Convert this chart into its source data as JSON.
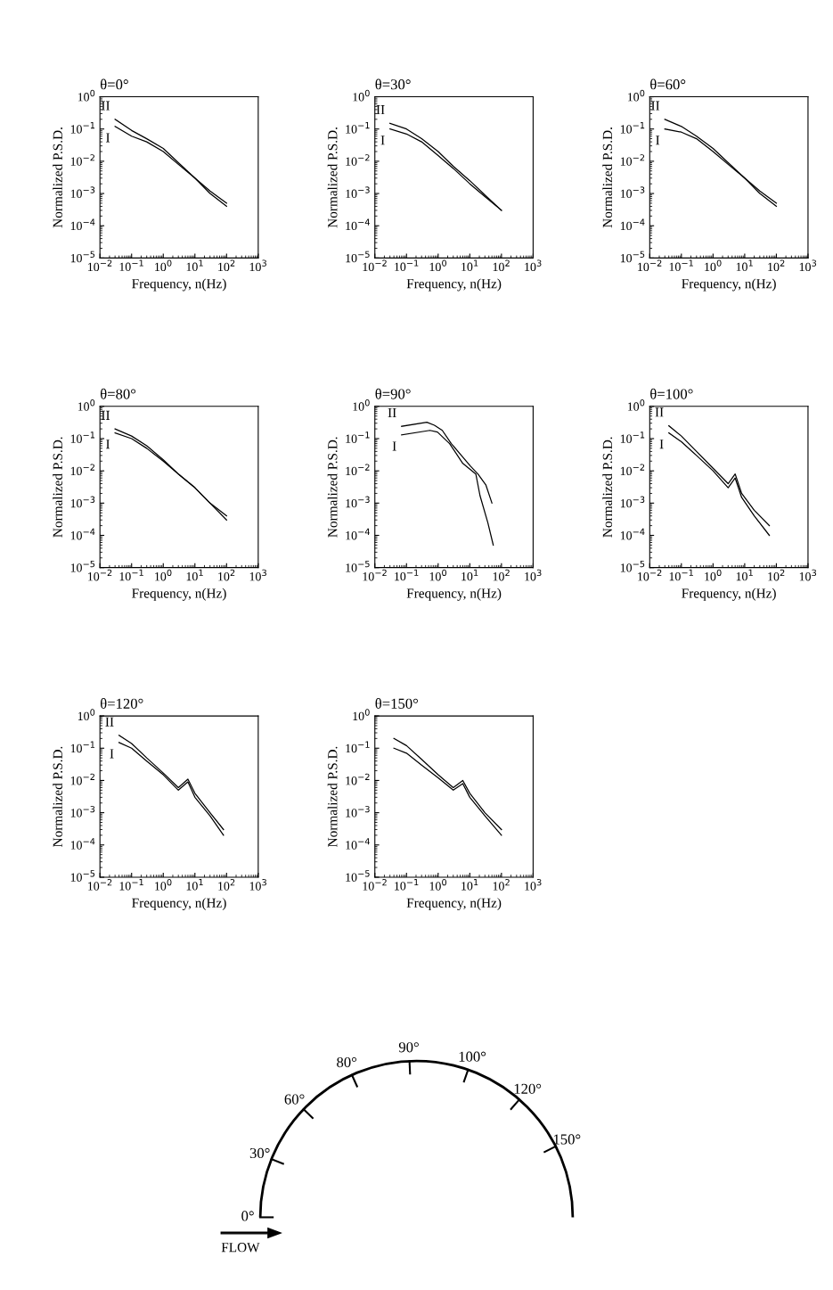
{
  "chart_data": [
    {
      "type": "line",
      "title": "θ=0°",
      "xlabel": "Frequency, n(Hz)",
      "ylabel": "Normalized P.S.D.",
      "log": "xy",
      "xlim": [
        0.01,
        1000
      ],
      "ylim": [
        1e-05,
        1
      ],
      "xticks": [
        {
          "value": 0.01,
          "label": "10$^{−2}$"
        },
        {
          "value": 0.1,
          "label": "10$^{−1}$"
        },
        {
          "value": 1,
          "label": "10$^{0}$"
        },
        {
          "value": 10,
          "label": "10$^{1}$"
        },
        {
          "value": 100,
          "label": "10$^{2}$"
        },
        {
          "value": 1000,
          "label": "10$^{3}$"
        }
      ],
      "yticks": [
        {
          "value": 1e-05,
          "label": "10$^{−5}$"
        },
        {
          "value": 0.0001,
          "label": "10$^{−4}$"
        },
        {
          "value": 0.001,
          "label": "10$^{−3}$"
        },
        {
          "value": 0.01,
          "label": "10$^{−2}$"
        },
        {
          "value": 0.1,
          "label": "10$^{−1}$"
        },
        {
          "value": 1,
          "label": "10$^{0}$"
        }
      ],
      "series": [
        {
          "name": "I",
          "color": "#000000",
          "x": [
            0.03,
            0.1,
            0.3,
            1,
            3,
            10,
            30,
            100
          ],
          "values": [
            0.12,
            0.06,
            0.04,
            0.02,
            0.008,
            0.003,
            0.001,
            0.0004
          ]
        },
        {
          "name": "II",
          "color": "#000000",
          "x": [
            0.03,
            0.1,
            0.3,
            1,
            3,
            10,
            30,
            100
          ],
          "values": [
            0.2,
            0.09,
            0.05,
            0.025,
            0.009,
            0.003,
            0.0012,
            0.0005
          ]
        }
      ]
    },
    {
      "type": "line",
      "title": "θ=30°",
      "xlabel": "Frequency, n(Hz)",
      "ylabel": "Normalized P.S.D.",
      "log": "xy",
      "xlim": [
        0.01,
        1000
      ],
      "ylim": [
        1e-05,
        1
      ],
      "xticks": [
        {
          "value": 0.01,
          "label": "10$^{−2}$"
        },
        {
          "value": 0.1,
          "label": "10$^{−1}$"
        },
        {
          "value": 1,
          "label": "10$^{0}$"
        },
        {
          "value": 10,
          "label": "10$^{1}$"
        },
        {
          "value": 100,
          "label": "10$^{2}$"
        },
        {
          "value": 1000,
          "label": "10$^{3}$"
        }
      ],
      "yticks": [
        {
          "value": 1e-05,
          "label": "10$^{−5}$"
        },
        {
          "value": 0.0001,
          "label": "10$^{−4}$"
        },
        {
          "value": 0.001,
          "label": "10$^{−3}$"
        },
        {
          "value": 0.01,
          "label": "10$^{−2}$"
        },
        {
          "value": 0.1,
          "label": "10$^{−1}$"
        },
        {
          "value": 1,
          "label": "10$^{0}$"
        }
      ],
      "series": [
        {
          "name": "I",
          "color": "#000000",
          "x": [
            0.03,
            0.1,
            0.3,
            1,
            3,
            10,
            30,
            100
          ],
          "values": [
            0.1,
            0.07,
            0.04,
            0.015,
            0.006,
            0.002,
            0.0008,
            0.0003
          ]
        },
        {
          "name": "II",
          "color": "#000000",
          "x": [
            0.03,
            0.1,
            0.3,
            1,
            3,
            10,
            30,
            100
          ],
          "values": [
            0.15,
            0.1,
            0.05,
            0.02,
            0.007,
            0.0025,
            0.0009,
            0.0003
          ]
        }
      ]
    },
    {
      "type": "line",
      "title": "θ=60°",
      "xlabel": "Frequency, n(Hz)",
      "ylabel": "Normalized P.S.D.",
      "log": "xy",
      "xlim": [
        0.01,
        1000
      ],
      "ylim": [
        1e-05,
        1
      ],
      "xticks": [
        {
          "value": 0.01,
          "label": "10$^{−2}$"
        },
        {
          "value": 0.1,
          "label": "10$^{−1}$"
        },
        {
          "value": 1,
          "label": "10$^{0}$"
        },
        {
          "value": 10,
          "label": "10$^{1}$"
        },
        {
          "value": 100,
          "label": "10$^{2}$"
        },
        {
          "value": 1000,
          "label": "10$^{3}$"
        }
      ],
      "yticks": [
        {
          "value": 1e-05,
          "label": "10$^{−5}$"
        },
        {
          "value": 0.0001,
          "label": "10$^{−4}$"
        },
        {
          "value": 0.001,
          "label": "10$^{−3}$"
        },
        {
          "value": 0.01,
          "label": "10$^{−2}$"
        },
        {
          "value": 0.1,
          "label": "10$^{−1}$"
        },
        {
          "value": 1,
          "label": "10$^{0}$"
        }
      ],
      "series": [
        {
          "name": "I",
          "color": "#000000",
          "x": [
            0.03,
            0.1,
            0.3,
            1,
            3,
            10,
            30,
            100
          ],
          "values": [
            0.1,
            0.08,
            0.05,
            0.02,
            0.008,
            0.003,
            0.001,
            0.0004
          ]
        },
        {
          "name": "II",
          "color": "#000000",
          "x": [
            0.03,
            0.1,
            0.3,
            1,
            3,
            10,
            30,
            100
          ],
          "values": [
            0.2,
            0.12,
            0.06,
            0.025,
            0.009,
            0.003,
            0.0012,
            0.0005
          ]
        }
      ]
    },
    {
      "type": "line",
      "title": "θ=80°",
      "xlabel": "Frequency, n(Hz)",
      "ylabel": "Normalized P.S.D.",
      "log": "xy",
      "xlim": [
        0.01,
        1000
      ],
      "ylim": [
        1e-05,
        1
      ],
      "xticks": [
        {
          "value": 0.01,
          "label": "10$^{−2}$"
        },
        {
          "value": 0.1,
          "label": "10$^{−1}$"
        },
        {
          "value": 1,
          "label": "10$^{0}$"
        },
        {
          "value": 10,
          "label": "10$^{1}$"
        },
        {
          "value": 100,
          "label": "10$^{2}$"
        },
        {
          "value": 1000,
          "label": "10$^{3}$"
        }
      ],
      "yticks": [
        {
          "value": 1e-05,
          "label": "10$^{−5}$"
        },
        {
          "value": 0.0001,
          "label": "10$^{−4}$"
        },
        {
          "value": 0.001,
          "label": "10$^{−3}$"
        },
        {
          "value": 0.01,
          "label": "10$^{−2}$"
        },
        {
          "value": 0.1,
          "label": "10$^{−1}$"
        },
        {
          "value": 1,
          "label": "10$^{0}$"
        }
      ],
      "series": [
        {
          "name": "I",
          "color": "#000000",
          "x": [
            0.03,
            0.1,
            0.3,
            1,
            3,
            10,
            30,
            100
          ],
          "values": [
            0.15,
            0.1,
            0.05,
            0.02,
            0.008,
            0.003,
            0.001,
            0.0003
          ]
        },
        {
          "name": "II",
          "color": "#000000",
          "x": [
            0.03,
            0.1,
            0.3,
            1,
            3,
            10,
            30,
            100
          ],
          "values": [
            0.2,
            0.12,
            0.06,
            0.022,
            0.008,
            0.003,
            0.001,
            0.0004
          ]
        }
      ]
    },
    {
      "type": "line",
      "title": "θ=90°",
      "xlabel": "Frequency, n(Hz)",
      "ylabel": "Normalized P.S.D.",
      "log": "xy",
      "xlim": [
        0.01,
        1000
      ],
      "ylim": [
        1e-05,
        1
      ],
      "xticks": [
        {
          "value": 0.01,
          "label": "10$^{−2}$"
        },
        {
          "value": 0.1,
          "label": "10$^{−1}$"
        },
        {
          "value": 1,
          "label": "10$^{0}$"
        },
        {
          "value": 10,
          "label": "10$^{1}$"
        },
        {
          "value": 100,
          "label": "10$^{2}$"
        },
        {
          "value": 1000,
          "label": "10$^{3}$"
        }
      ],
      "yticks": [
        {
          "value": 1e-05,
          "label": "10$^{−5}$"
        },
        {
          "value": 0.0001,
          "label": "10$^{−4}$"
        },
        {
          "value": 0.001,
          "label": "10$^{−3}$"
        },
        {
          "value": 0.01,
          "label": "10$^{−2}$"
        },
        {
          "value": 0.1,
          "label": "10$^{−1}$"
        },
        {
          "value": 1,
          "label": "10$^{0}$"
        }
      ],
      "series": [
        {
          "name": "I",
          "color": "#000000",
          "x": [
            0.07,
            0.55,
            0.95,
            2.3,
            6,
            15.5,
            21,
            37,
            55
          ],
          "values": [
            0.13,
            0.18,
            0.16,
            0.07,
            0.017,
            0.008,
            0.0017,
            0.00025,
            5e-05
          ]
        },
        {
          "name": "II",
          "color": "#000000",
          "x": [
            0.07,
            0.44,
            0.76,
            1.35,
            2.6,
            10.5,
            18,
            32,
            50
          ],
          "values": [
            0.24,
            0.32,
            0.26,
            0.18,
            0.07,
            0.014,
            0.008,
            0.0037,
            0.001
          ]
        }
      ]
    },
    {
      "type": "line",
      "title": "θ=100°",
      "xlabel": "Frequency, n(Hz)",
      "ylabel": "Normalized P.S.D.",
      "log": "xy",
      "xlim": [
        0.01,
        1000
      ],
      "ylim": [
        1e-05,
        1
      ],
      "xticks": [
        {
          "value": 0.01,
          "label": "10$^{−2}$"
        },
        {
          "value": 0.1,
          "label": "10$^{−1}$"
        },
        {
          "value": 1,
          "label": "10$^{0}$"
        },
        {
          "value": 10,
          "label": "10$^{1}$"
        },
        {
          "value": 100,
          "label": "10$^{2}$"
        },
        {
          "value": 1000,
          "label": "10$^{3}$"
        }
      ],
      "yticks": [
        {
          "value": 1e-05,
          "label": "10$^{−5}$"
        },
        {
          "value": 0.0001,
          "label": "10$^{−4}$"
        },
        {
          "value": 0.001,
          "label": "10$^{−3}$"
        },
        {
          "value": 0.01,
          "label": "10$^{−2}$"
        },
        {
          "value": 0.1,
          "label": "10$^{−1}$"
        },
        {
          "value": 1,
          "label": "10$^{0}$"
        }
      ],
      "series": [
        {
          "name": "I",
          "color": "#000000",
          "x": [
            0.04,
            0.1,
            0.3,
            1,
            3,
            5,
            8,
            20,
            60
          ],
          "values": [
            0.15,
            0.08,
            0.03,
            0.01,
            0.003,
            0.006,
            0.0015,
            0.0004,
            0.0001
          ]
        },
        {
          "name": "II",
          "color": "#000000",
          "x": [
            0.04,
            0.1,
            0.3,
            1,
            3,
            5,
            8,
            20,
            60
          ],
          "values": [
            0.25,
            0.12,
            0.04,
            0.012,
            0.004,
            0.008,
            0.002,
            0.0006,
            0.0002
          ]
        }
      ]
    },
    {
      "type": "line",
      "title": "θ=120°",
      "xlabel": "Frequency, n(Hz)",
      "ylabel": "Normalized P.S.D.",
      "log": "xy",
      "xlim": [
        0.01,
        1000
      ],
      "ylim": [
        1e-05,
        1
      ],
      "xticks": [
        {
          "value": 0.01,
          "label": "10$^{−2}$"
        },
        {
          "value": 0.1,
          "label": "10$^{−1}$"
        },
        {
          "value": 1,
          "label": "10$^{0}$"
        },
        {
          "value": 10,
          "label": "10$^{1}$"
        },
        {
          "value": 100,
          "label": "10$^{2}$"
        },
        {
          "value": 1000,
          "label": "10$^{3}$"
        }
      ],
      "yticks": [
        {
          "value": 1e-05,
          "label": "10$^{−5}$"
        },
        {
          "value": 0.0001,
          "label": "10$^{−4}$"
        },
        {
          "value": 0.001,
          "label": "10$^{−3}$"
        },
        {
          "value": 0.01,
          "label": "10$^{−2}$"
        },
        {
          "value": 0.1,
          "label": "10$^{−1}$"
        },
        {
          "value": 1,
          "label": "10$^{0}$"
        }
      ],
      "series": [
        {
          "name": "I",
          "color": "#000000",
          "x": [
            0.04,
            0.1,
            0.3,
            1,
            3,
            6,
            10,
            30,
            80
          ],
          "values": [
            0.15,
            0.1,
            0.04,
            0.015,
            0.005,
            0.009,
            0.003,
            0.0008,
            0.0002
          ]
        },
        {
          "name": "II",
          "color": "#000000",
          "x": [
            0.04,
            0.1,
            0.3,
            1,
            3,
            6,
            10,
            30,
            80
          ],
          "values": [
            0.25,
            0.14,
            0.05,
            0.017,
            0.006,
            0.011,
            0.004,
            0.001,
            0.0003
          ]
        }
      ]
    },
    {
      "type": "line",
      "title": "θ=150°",
      "xlabel": "Frequency, n(Hz)",
      "ylabel": "Normalized P.S.D.",
      "log": "xy",
      "xlim": [
        0.01,
        1000
      ],
      "ylim": [
        1e-05,
        1
      ],
      "xticks": [
        {
          "value": 0.01,
          "label": "10$^{−2}$"
        },
        {
          "value": 0.1,
          "label": "10$^{−1}$"
        },
        {
          "value": 1,
          "label": "10$^{0}$"
        },
        {
          "value": 10,
          "label": "10$^{1}$"
        },
        {
          "value": 100,
          "label": "10$^{2}$"
        },
        {
          "value": 1000,
          "label": "10$^{3}$"
        }
      ],
      "yticks": [
        {
          "value": 1e-05,
          "label": "10$^{−5}$"
        },
        {
          "value": 0.0001,
          "label": "10$^{−4}$"
        },
        {
          "value": 0.001,
          "label": "10$^{−3}$"
        },
        {
          "value": 0.01,
          "label": "10$^{−2}$"
        },
        {
          "value": 0.1,
          "label": "10$^{−1}$"
        },
        {
          "value": 1,
          "label": "10$^{0}$"
        }
      ],
      "series": [
        {
          "color": "#000000",
          "x": [
            0.04,
            0.1,
            0.3,
            1,
            3,
            6,
            10,
            30,
            100
          ],
          "values": [
            0.1,
            0.07,
            0.03,
            0.012,
            0.005,
            0.008,
            0.003,
            0.0008,
            0.0002
          ]
        },
        {
          "color": "#000000",
          "x": [
            0.04,
            0.1,
            0.3,
            1,
            3,
            6,
            10,
            30,
            100
          ],
          "values": [
            0.2,
            0.12,
            0.045,
            0.015,
            0.006,
            0.01,
            0.004,
            0.001,
            0.0003
          ]
        }
      ]
    },
    {
      "type": "other",
      "categories": [
        "0°",
        "30°",
        "60°",
        "80°",
        "90°",
        "100°",
        "120°",
        "150°"
      ],
      "annotations": [
        "FLOW"
      ]
    }
  ]
}
